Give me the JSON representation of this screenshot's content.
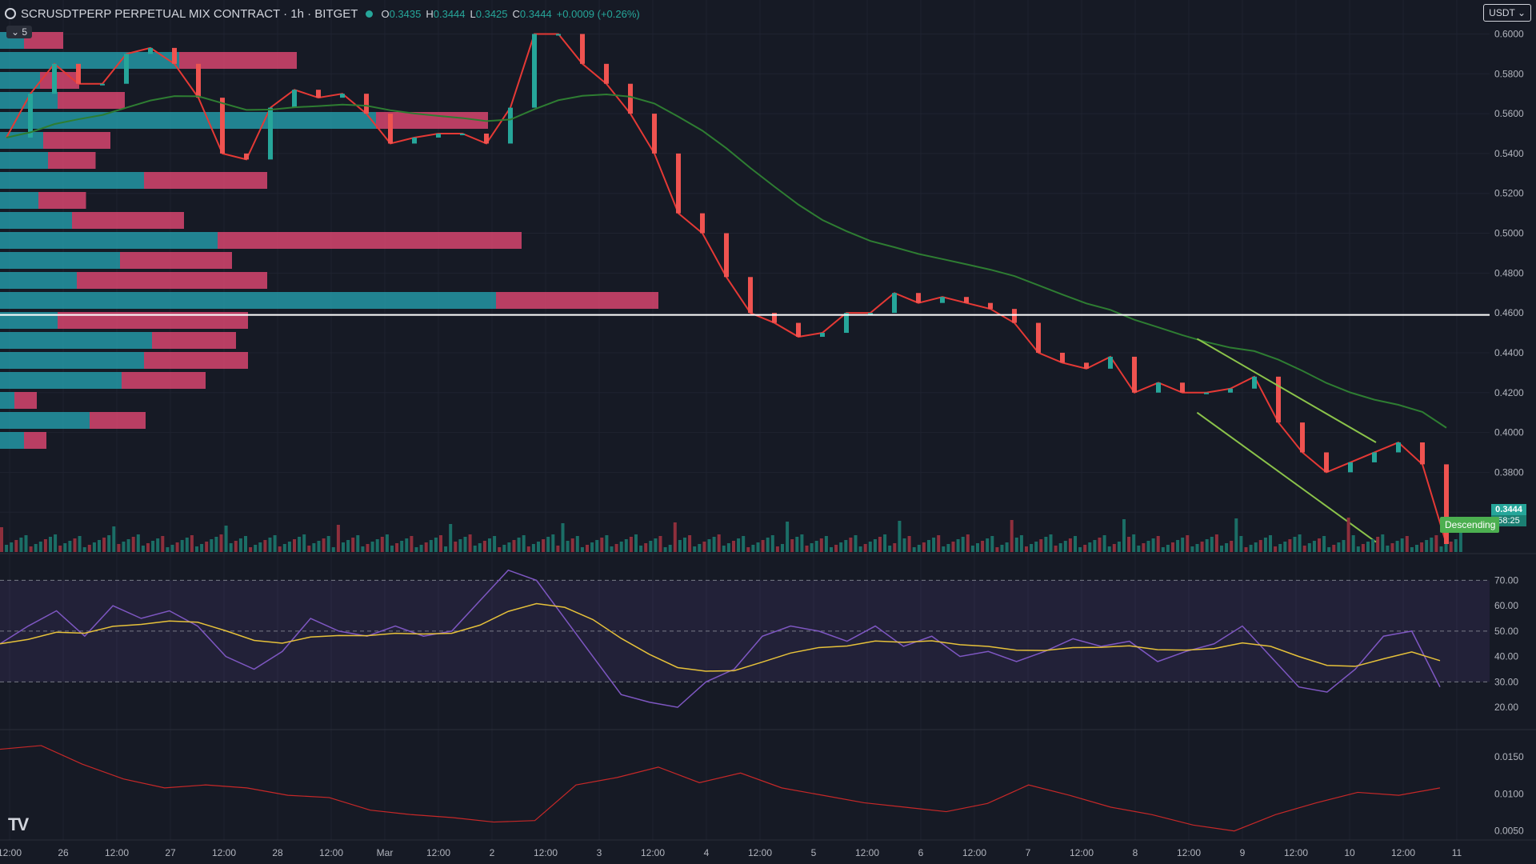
{
  "header": {
    "title": "SCRUSDTPERP PERPETUAL MIX CONTRACT · 1h · BITGET",
    "o_label": "O",
    "o": "0.3435",
    "h_label": "H",
    "h": "0.3444",
    "l_label": "L",
    "l": "0.3425",
    "c_label": "C",
    "c": "0.3444",
    "change": "+0.0009 (+0.26%)"
  },
  "indicators_toggle": "5",
  "currency": "USDT",
  "price_tag": {
    "price": "0.3444",
    "countdown": "58:25"
  },
  "pattern_label": "Descending",
  "colors": {
    "up": "#26a69a",
    "down": "#ef5350",
    "bg": "#161a25",
    "rsi": "#7e57c2",
    "rsi_ma": "#e6c13a",
    "ema_fast": "#2962ff",
    "ema_mid": "#e53935",
    "ema_slow": "#2e7d32"
  },
  "chart_data": {
    "type": "line",
    "title": "SCRUSDTPERP 1h price",
    "x_labels": [
      "12:00",
      "26",
      "12:00",
      "27",
      "12:00",
      "28",
      "12:00",
      "Mar",
      "12:00",
      "2",
      "12:00",
      "3",
      "12:00",
      "4",
      "12:00",
      "5",
      "12:00",
      "6",
      "12:00",
      "7",
      "12:00",
      "8",
      "12:00",
      "9",
      "12:00",
      "10",
      "12:00",
      "11"
    ],
    "y_ticks": [
      "0.6000",
      "0.5800",
      "0.5600",
      "0.5400",
      "0.5200",
      "0.5000",
      "0.4800",
      "0.4600",
      "0.4400",
      "0.4200",
      "0.4000",
      "0.3800",
      "0.3600"
    ],
    "ylim": [
      0.34,
      0.605
    ],
    "price_path": [
      0.548,
      0.57,
      0.585,
      0.575,
      0.575,
      0.59,
      0.593,
      0.585,
      0.568,
      0.54,
      0.537,
      0.563,
      0.572,
      0.568,
      0.57,
      0.56,
      0.545,
      0.548,
      0.55,
      0.55,
      0.545,
      0.563,
      0.6,
      0.6,
      0.585,
      0.575,
      0.56,
      0.54,
      0.51,
      0.5,
      0.478,
      0.46,
      0.455,
      0.448,
      0.45,
      0.46,
      0.46,
      0.47,
      0.465,
      0.468,
      0.465,
      0.462,
      0.455,
      0.44,
      0.435,
      0.432,
      0.438,
      0.42,
      0.425,
      0.42,
      0.42,
      0.422,
      0.428,
      0.405,
      0.39,
      0.38,
      0.385,
      0.39,
      0.395,
      0.384,
      0.344
    ],
    "horizontal_level": 0.459,
    "channel_upper": [
      [
        0.435,
        0.447
      ],
      [
        0.5,
        0.395
      ]
    ],
    "channel_lower": [
      [
        0.435,
        0.41
      ],
      [
        0.5,
        0.345
      ]
    ],
    "rsi": {
      "y_ticks": [
        "70.00",
        "60.00",
        "50.00",
        "40.00",
        "30.00",
        "20.00"
      ],
      "ylim": [
        15,
        78
      ],
      "levels": [
        70,
        50,
        30
      ],
      "values": [
        45,
        52,
        58,
        48,
        60,
        55,
        58,
        52,
        40,
        35,
        42,
        55,
        50,
        48,
        52,
        48,
        50,
        62,
        74,
        70,
        55,
        40,
        25,
        22,
        20,
        30,
        35,
        48,
        52,
        50,
        46,
        52,
        44,
        48,
        40,
        42,
        38,
        42,
        47,
        44,
        46,
        38,
        42,
        45,
        52,
        40,
        28,
        26,
        35,
        48,
        50,
        28
      ]
    },
    "lower_indicator": {
      "y_ticks": [
        "0.0150",
        "0.0100",
        "0.0050"
      ],
      "ylim": [
        0.004,
        0.018
      ],
      "values": [
        0.016,
        0.0165,
        0.014,
        0.012,
        0.0108,
        0.0112,
        0.0108,
        0.0098,
        0.0095,
        0.0078,
        0.0072,
        0.0068,
        0.0062,
        0.0064,
        0.0112,
        0.0122,
        0.0136,
        0.0115,
        0.0128,
        0.0108,
        0.0098,
        0.0088,
        0.0082,
        0.0076,
        0.0087,
        0.0112,
        0.0098,
        0.0082,
        0.0072,
        0.0058,
        0.005,
        0.0072,
        0.0088,
        0.0102,
        0.0098,
        0.0108
      ]
    }
  }
}
